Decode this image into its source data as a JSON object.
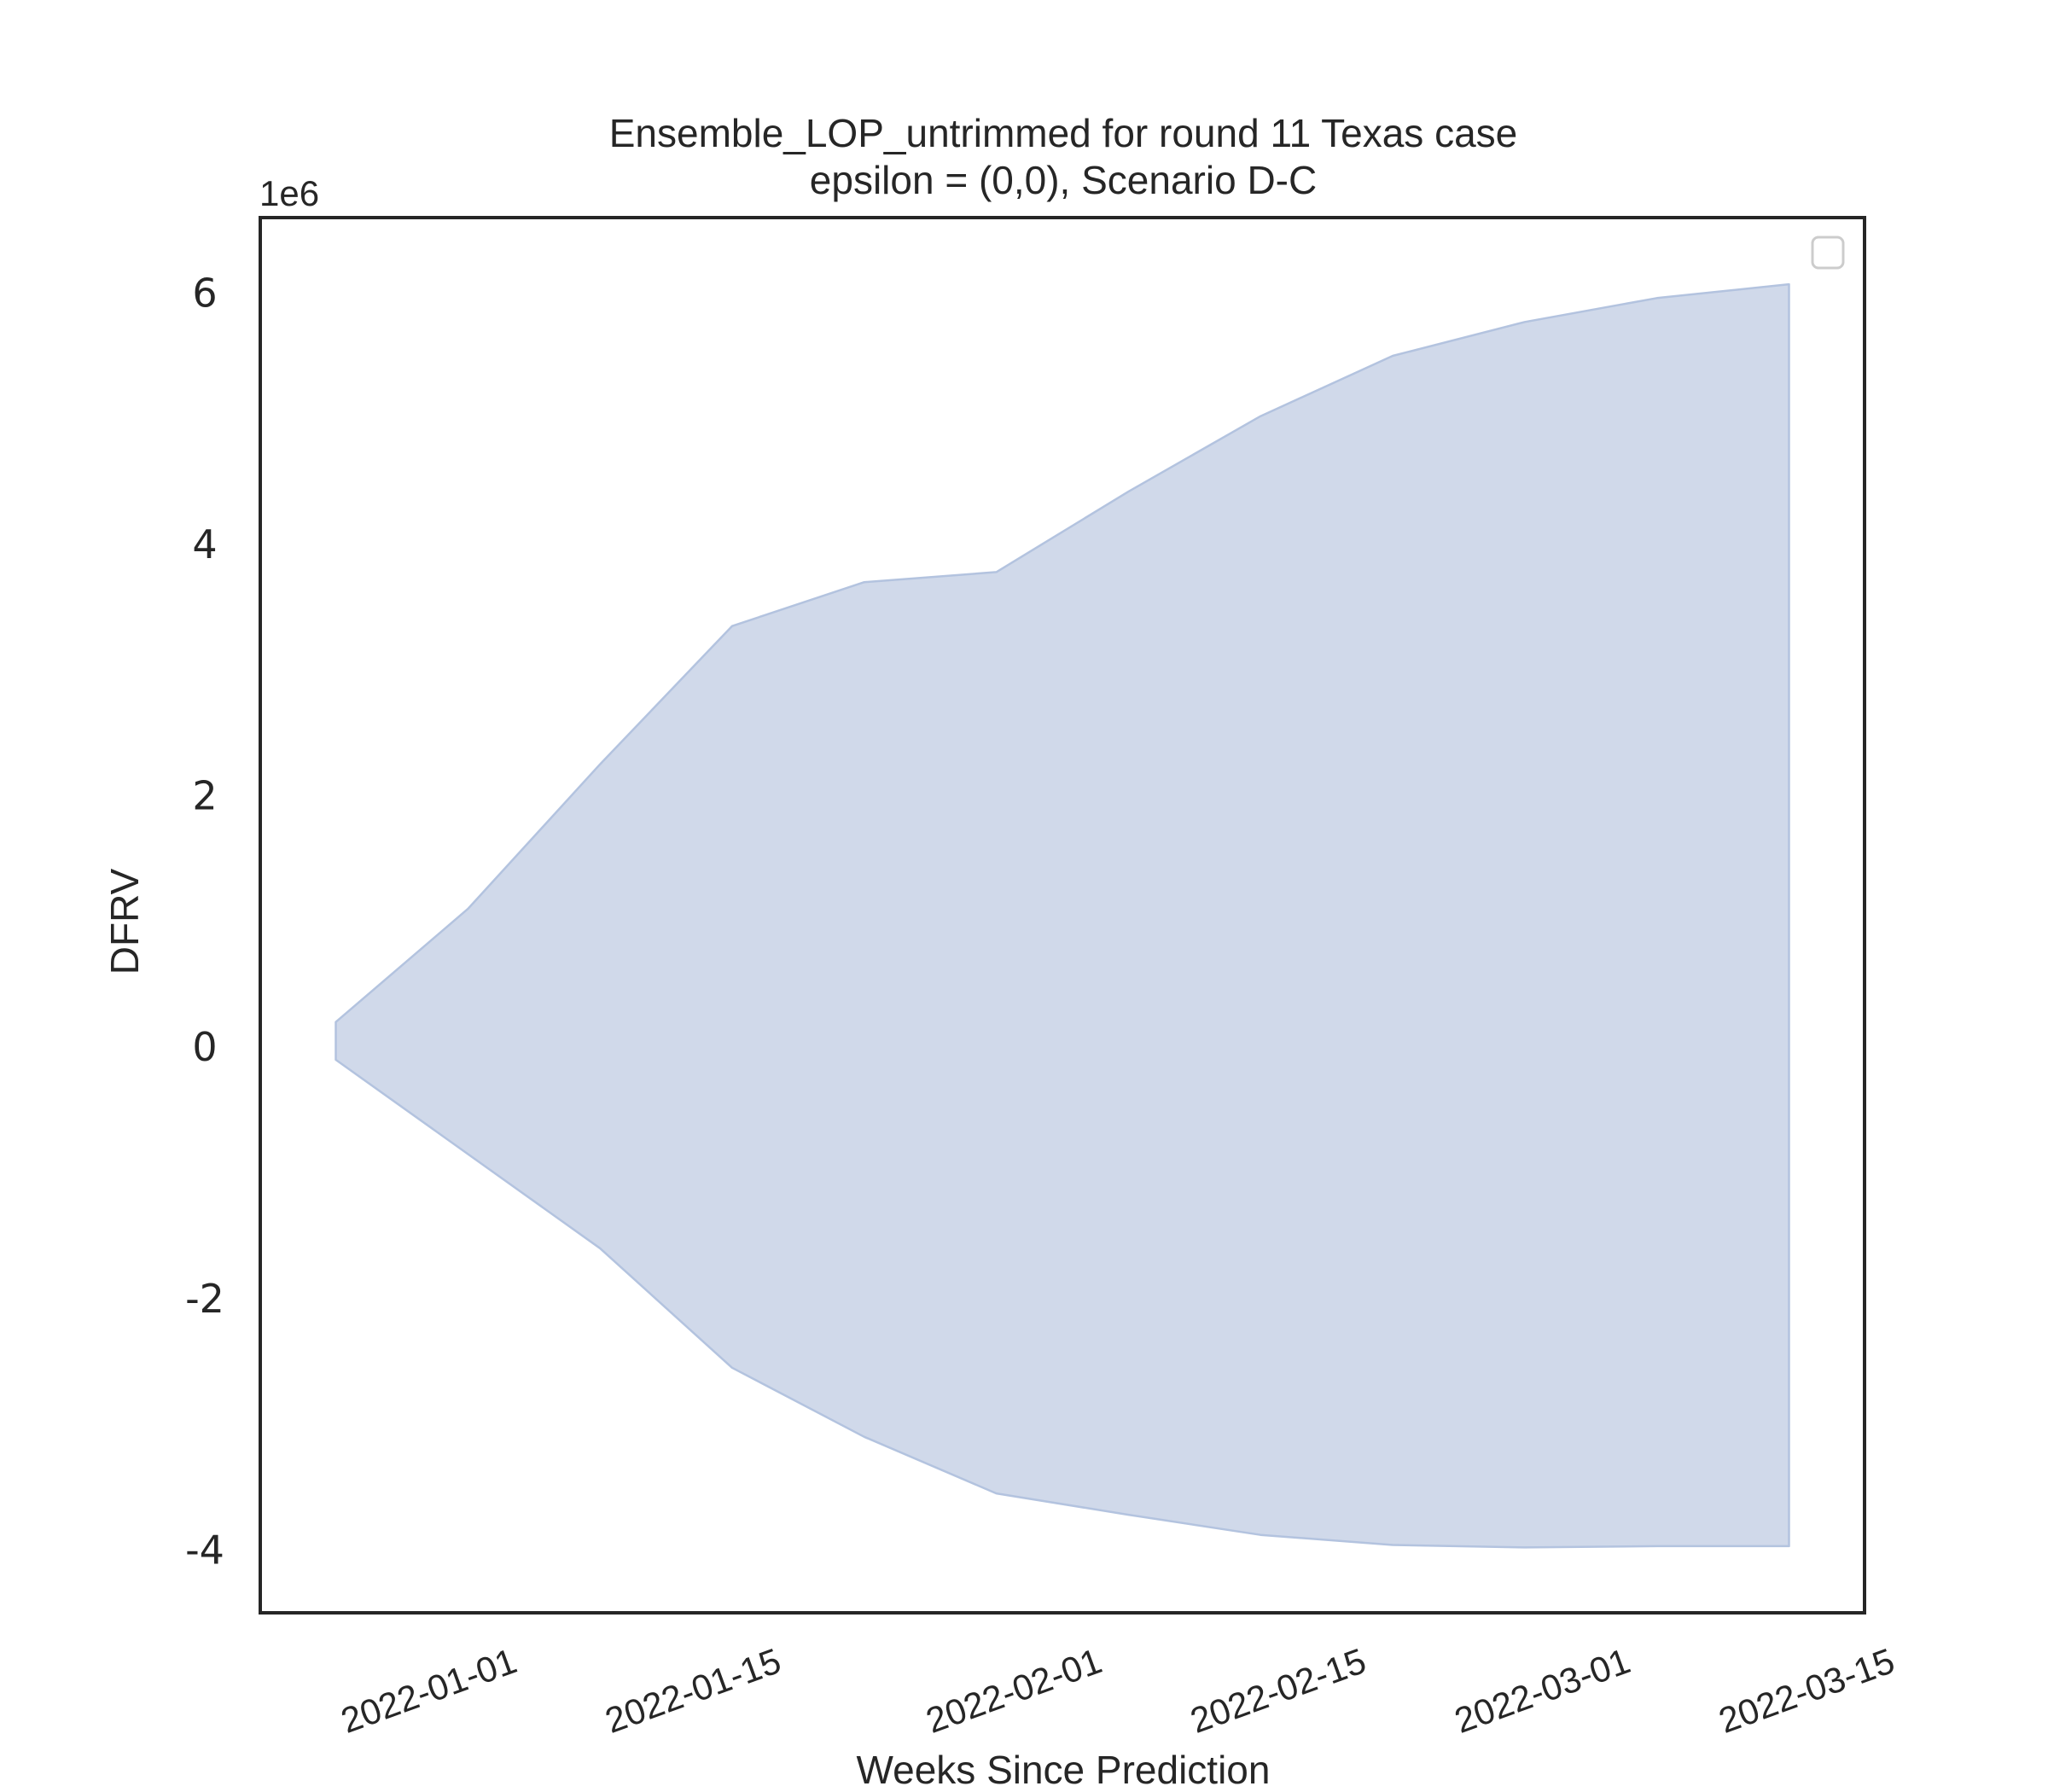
{
  "chart_data": {
    "type": "area",
    "title": "Ensemble_LOP_untrimmed for round 11 Texas case",
    "subtitle": "epsilon = (0,0), Scenario D-C",
    "xlabel": "Weeks Since Prediction",
    "ylabel": "DFRV",
    "y_multiplier_label": "1e6",
    "y_scale": 1000000,
    "x_ticks": [
      "2022-01-01",
      "2022-01-15",
      "2022-02-01",
      "2022-02-15",
      "2022-03-01",
      "2022-03-15"
    ],
    "y_ticks": [
      -4,
      -2,
      0,
      2,
      4,
      6
    ],
    "xlim": [
      "2021-12-21",
      "2022-03-16"
    ],
    "ylim": [
      -4.5,
      6.6
    ],
    "grid": false,
    "legend": {
      "placement": "top-right",
      "entries": []
    },
    "series": [
      {
        "x": [
          "2021-12-25",
          "2022-01-01",
          "2022-01-08",
          "2022-01-15",
          "2022-01-22",
          "2022-01-29",
          "2022-02-05",
          "2022-02-12",
          "2022-02-19",
          "2022-02-26",
          "2022-03-05",
          "2022-03-12"
        ],
        "lower": [
          -0.1,
          -0.85,
          -1.6,
          -2.55,
          -3.1,
          -3.55,
          -3.72,
          -3.88,
          -3.96,
          -3.98,
          -3.97,
          -3.97
        ],
        "upper": [
          0.2,
          1.1,
          2.25,
          3.35,
          3.7,
          3.78,
          4.42,
          5.02,
          5.5,
          5.77,
          5.96,
          6.07
        ]
      }
    ],
    "colors": {
      "fill": "#d0d9ea",
      "stroke": "#b3c3df",
      "axis": "#262626"
    }
  }
}
